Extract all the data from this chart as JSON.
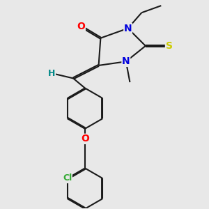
{
  "bg_color": "#e8e8e8",
  "bond_color": "#1a1a1a",
  "bond_lw": 1.5,
  "dbo": 0.012,
  "figsize": [
    3.0,
    3.0
  ],
  "dpi": 100,
  "xlim": [
    -1.5,
    2.5
  ],
  "ylim": [
    -3.5,
    1.8
  ],
  "colors": {
    "O": "#ff0000",
    "N": "#0000dd",
    "S": "#cccc00",
    "H": "#008888",
    "Cl": "#33aa33",
    "C": "#1a1a1a"
  }
}
